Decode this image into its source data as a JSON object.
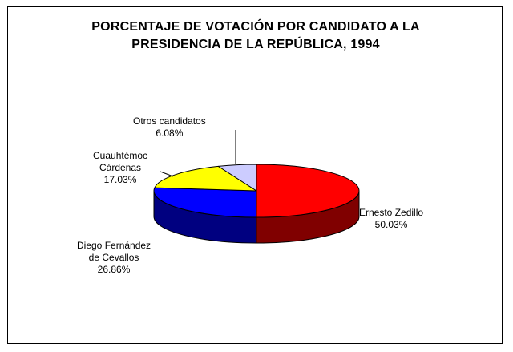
{
  "chart_data": {
    "type": "pie",
    "title_lines": [
      "PORCENTAJE DE VOTACIÓN POR CANDIDATO A LA",
      "PRESIDENCIA DE LA REPÚBLICA, 1994"
    ],
    "three_d": true,
    "slices": [
      {
        "label_lines": [
          "Ernesto Zedillo"
        ],
        "value_label": "50.03%",
        "value": 50.03,
        "color": "#ff0000",
        "side_color": "#800000"
      },
      {
        "label_lines": [
          "Diego Fernández",
          "de Cevallos"
        ],
        "value_label": "26.86%",
        "value": 26.86,
        "color": "#0000ff",
        "side_color": "#000080"
      },
      {
        "label_lines": [
          "Cuauhtémoc",
          "Cárdenas"
        ],
        "value_label": "17.03%",
        "value": 17.03,
        "color": "#ffff00",
        "side_color": "#808000"
      },
      {
        "label_lines": [
          "Otros candidatos"
        ],
        "value_label": "6.08%",
        "value": 6.08,
        "color": "#ccccff",
        "side_color": "#666699"
      }
    ]
  }
}
